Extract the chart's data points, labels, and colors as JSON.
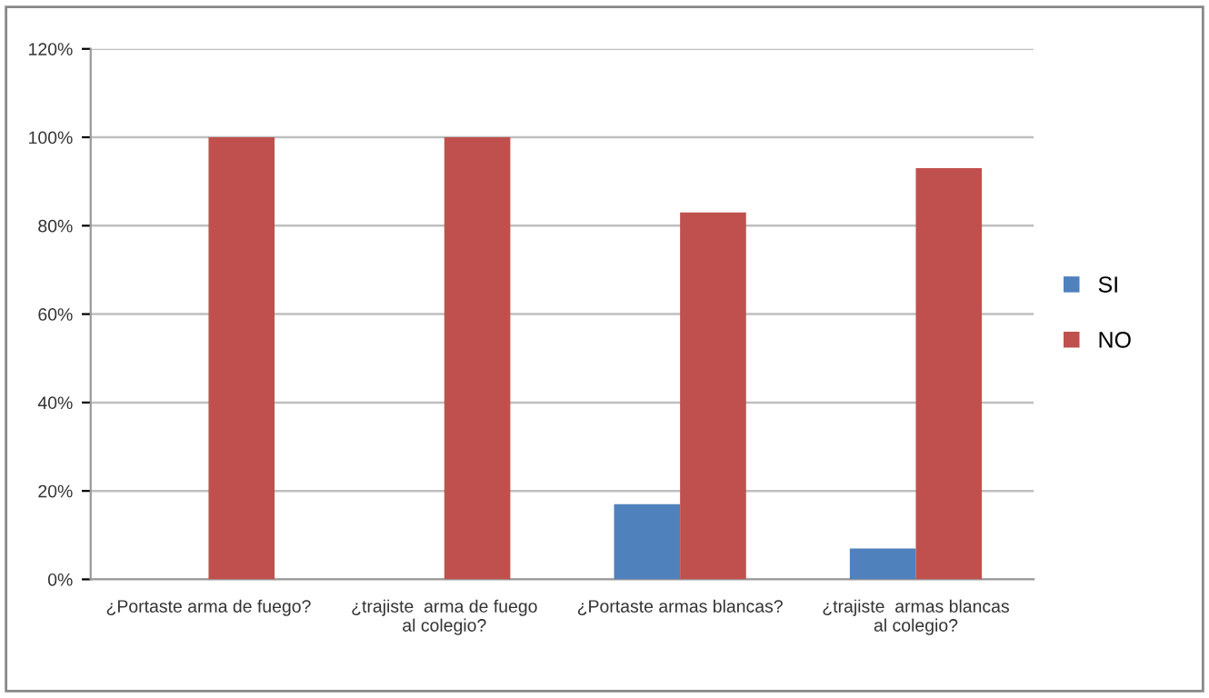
{
  "chart_data": {
    "type": "bar",
    "categories": [
      "¿Portaste arma de fuego?",
      "¿trajiste  arma de fuego al colegio?",
      "¿Portaste armas blancas?",
      "¿trajiste  armas blancas al colegio?"
    ],
    "series": [
      {
        "name": "SI",
        "color": "#4f81bd",
        "values": [
          0,
          0,
          17,
          7
        ]
      },
      {
        "name": "NO",
        "color": "#c0504d",
        "values": [
          100,
          100,
          83,
          93
        ]
      }
    ],
    "ylim": [
      0,
      120
    ],
    "yticks": [
      {
        "value": 0,
        "label": "0%"
      },
      {
        "value": 20,
        "label": "20%"
      },
      {
        "value": 40,
        "label": "40%"
      },
      {
        "value": 60,
        "label": "60%"
      },
      {
        "value": 80,
        "label": "80%"
      },
      {
        "value": 100,
        "label": "100%"
      },
      {
        "value": 120,
        "label": "120%"
      }
    ],
    "grid": "y",
    "legend": "right"
  }
}
